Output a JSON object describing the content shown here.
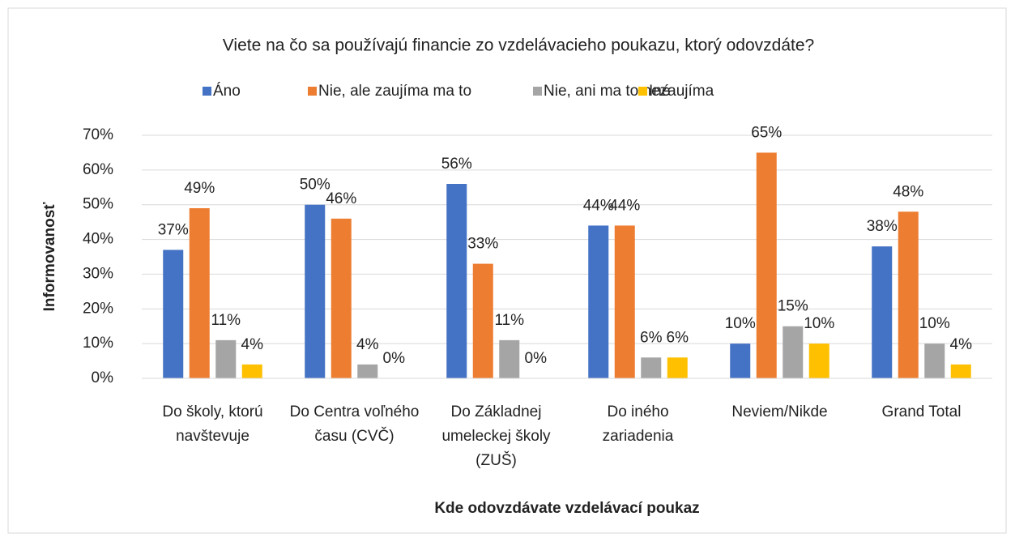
{
  "chart_data": {
    "type": "bar",
    "title": "Viete na čo sa používajú financie zo vzdelávacieho poukazu, ktorý odovzdáte?",
    "x_label": "Kde odovzdávate vzdelávací poukaz",
    "y_label": "Informovanosť",
    "categories": [
      "Do školy, ktorú navštevuje",
      "Do Centra voľného času (CVČ)",
      "Do Základnej umeleckej školy (ZUŠ)",
      "Do iného zariadenia",
      "Neviem/Nikde",
      "Grand Total"
    ],
    "series": [
      {
        "name": "Áno",
        "color": "#4472c4",
        "values": [
          37,
          50,
          56,
          44,
          10,
          38
        ],
        "value_labels": [
          "37%",
          "50%",
          "56%",
          "44%",
          "10%",
          "38%"
        ]
      },
      {
        "name": "Nie, ale zaujíma ma to",
        "color": "#ed7d31",
        "values": [
          49,
          46,
          33,
          44,
          65,
          48
        ],
        "value_labels": [
          "49%",
          "46%",
          "33%",
          "44%",
          "65%",
          "48%"
        ]
      },
      {
        "name": "Nie, ani ma to nezaujíma",
        "color": "#a5a5a5",
        "values": [
          11,
          4,
          11,
          6,
          15,
          10
        ],
        "value_labels": [
          "11%",
          "4%",
          "11%",
          "6%",
          "15%",
          "10%"
        ]
      },
      {
        "name": "Iné",
        "color": "#ffc000",
        "values": [
          4,
          0,
          0,
          6,
          10,
          4
        ],
        "value_labels": [
          "4%",
          "0%",
          "0%",
          "6%",
          "10%",
          "4%"
        ]
      }
    ],
    "ylim": [
      0,
      70
    ],
    "yticks": [
      {
        "value": 0,
        "label": "0%"
      },
      {
        "value": 10,
        "label": "10%"
      },
      {
        "value": 20,
        "label": "20%"
      },
      {
        "value": 30,
        "label": "30%"
      },
      {
        "value": 40,
        "label": "40%"
      },
      {
        "value": 50,
        "label": "50%"
      },
      {
        "value": 60,
        "label": "60%"
      },
      {
        "value": 70,
        "label": "70%"
      }
    ],
    "grid": true,
    "legend": "top"
  }
}
